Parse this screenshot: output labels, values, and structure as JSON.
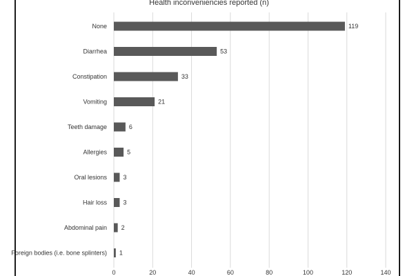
{
  "chart_data": {
    "type": "bar",
    "orientation": "horizontal",
    "title": "Health inconveniencies reported (n)",
    "categories": [
      "None",
      "Diarrhea",
      "Constipation",
      "Vomiting",
      "Teeth damage",
      "Allergies",
      "Oral lesions",
      "Hair loss",
      "Abdominal pain",
      "Foreign bodies (i.e. bone splinters)"
    ],
    "values": [
      119,
      53,
      33,
      21,
      6,
      5,
      3,
      3,
      2,
      1
    ],
    "value_labels": [
      "119",
      "53",
      "33",
      "21",
      "6",
      "5",
      "3",
      "3",
      "2",
      "1"
    ],
    "xlim": [
      0,
      140
    ],
    "x_ticks": [
      0,
      20,
      40,
      60,
      80,
      100,
      120,
      140
    ],
    "x_tick_labels": [
      "0",
      "20",
      "40",
      "60",
      "80",
      "100",
      "120",
      "140"
    ],
    "grid": true,
    "colors": {
      "bar": "#595959",
      "grid": "#d9d9d9",
      "text": "#333333"
    }
  }
}
